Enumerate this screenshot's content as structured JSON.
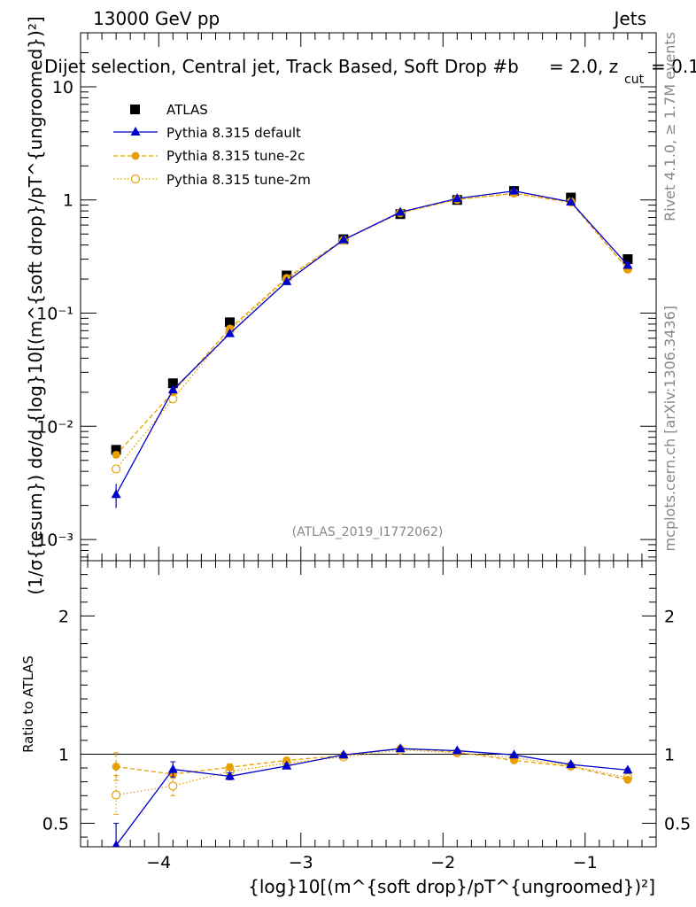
{
  "header": {
    "energy_label": "13000 GeV pp",
    "process_label": "Jets",
    "selection_title": "Dijet selection, Central jet, Track Based, Soft Drop #b",
    "selection_beta": "= 2.0, z",
    "selection_zcut_sub": "cut",
    "selection_zcut_val": "= 0.1"
  },
  "side_labels": {
    "rivet": "Rivet 4.1.0, ≥ 1.7M events",
    "mcplots": "mcplots.cern.ch [arXiv:1306.3436]"
  },
  "analysis_id": "(ATLAS_2019_I1772062)",
  "axis_labels": {
    "y_main": "(1/σ{resum}) dσ/d {log}10[(m^{soft drop}/pT^{ungroomed})²]",
    "y_ratio": "Ratio to ATLAS",
    "x": "{log}10[(m^{soft drop}/pT^{ungroomed})²]"
  },
  "colors": {
    "atlas": "#000000",
    "default": "#0000cc",
    "tune2c": "#e8a000",
    "tune2m": "#e8a000"
  },
  "chart_data": [
    {
      "type": "scatter",
      "panel": "main",
      "title": "Dijet selection, Central jet, Track Based, Soft Drop",
      "xlabel": "{log}10[(m^{soft drop}/pT^{ungroomed})²]",
      "ylabel": "(1/σ{resum}) dσ/d {log}10[(m^{soft drop}/pT^{ungroomed})²]",
      "yscale": "log",
      "xlim": [
        -4.55,
        -0.5
      ],
      "ylim": [
        0.00065,
        30
      ],
      "x_ticks": [
        -4,
        -3,
        -2,
        -1
      ],
      "y_ticks": [
        {
          "value": 0.001,
          "label": "10⁻³"
        },
        {
          "value": 0.01,
          "label": "10⁻²"
        },
        {
          "value": 0.1,
          "label": "10⁻¹"
        },
        {
          "value": 1,
          "label": "1"
        },
        {
          "value": 10,
          "label": "10"
        }
      ],
      "x": [
        -4.3,
        -3.9,
        -3.5,
        -3.1,
        -2.7,
        -2.3,
        -1.9,
        -1.5,
        -1.1,
        -0.7
      ],
      "series": [
        {
          "name": "ATLAS",
          "style": "square",
          "values": [
            0.0062,
            0.024,
            0.083,
            0.215,
            0.45,
            0.75,
            1.0,
            1.2,
            1.05,
            0.3
          ]
        },
        {
          "name": "Pythia 8.315 default",
          "style": "solid-triangle",
          "values": [
            0.0025,
            0.021,
            0.066,
            0.19,
            0.445,
            0.78,
            1.03,
            1.2,
            0.96,
            0.265
          ],
          "errors": [
            0.0006,
            0.0015,
            0.004,
            0.004,
            0.005,
            0.006,
            0.007,
            0.008,
            0.008,
            0.005
          ]
        },
        {
          "name": "Pythia 8.315 tune-2c",
          "style": "dashed-circle",
          "values": [
            0.0056,
            0.02,
            0.073,
            0.205,
            0.445,
            0.77,
            1.01,
            1.14,
            0.95,
            0.245
          ]
        },
        {
          "name": "Pythia 8.315 tune-2m",
          "style": "dotted-open-circle",
          "values": [
            0.0042,
            0.0175,
            0.07,
            0.2,
            0.44,
            0.77,
            1.01,
            1.15,
            0.96,
            0.245
          ]
        }
      ]
    },
    {
      "type": "scatter",
      "panel": "ratio",
      "ylabel": "Ratio to ATLAS",
      "xlabel": "{log}10[(m^{soft drop}/pT^{ungroomed})²]",
      "xlim": [
        -4.55,
        -0.5
      ],
      "ylim": [
        0.33,
        2.4
      ],
      "x_ticks": [
        -4,
        -3,
        -2,
        -1
      ],
      "x_tick_labels": [
        "−4",
        "−3",
        "−2",
        "−1"
      ],
      "y_ticks": [
        0.5,
        1,
        2
      ],
      "y_tick_labels": [
        "0.5",
        "1",
        "2"
      ],
      "reference_line": 1,
      "x": [
        -4.3,
        -3.9,
        -3.5,
        -3.1,
        -2.7,
        -2.3,
        -1.9,
        -1.5,
        -1.1,
        -0.7
      ],
      "series": [
        {
          "name": "Pythia 8.315 default",
          "values": [
            0.34,
            0.89,
            0.84,
            0.915,
            0.995,
            1.04,
            1.025,
            0.995,
            0.925,
            0.885
          ],
          "errors": [
            0.16,
            0.055,
            0.025,
            0.015,
            0.01,
            0.008,
            0.007,
            0.007,
            0.008,
            0.01
          ]
        },
        {
          "name": "Pythia 8.315 tune-2c",
          "values": [
            0.91,
            0.855,
            0.905,
            0.955,
            0.99,
            1.04,
            1.015,
            0.955,
            0.91,
            0.815
          ],
          "errors": [
            0.1,
            0.03,
            0.025,
            0.012,
            0.01,
            0.008,
            0.007,
            0.007,
            0.008,
            0.01
          ]
        },
        {
          "name": "Pythia 8.315 tune-2m",
          "values": [
            0.705,
            0.77,
            0.875,
            0.935,
            0.98,
            1.03,
            1.01,
            0.975,
            0.915,
            0.83
          ],
          "errors": [
            0.14,
            0.07,
            0.02,
            0.012,
            0.01,
            0.008,
            0.007,
            0.007,
            0.008,
            0.01
          ]
        }
      ]
    }
  ]
}
